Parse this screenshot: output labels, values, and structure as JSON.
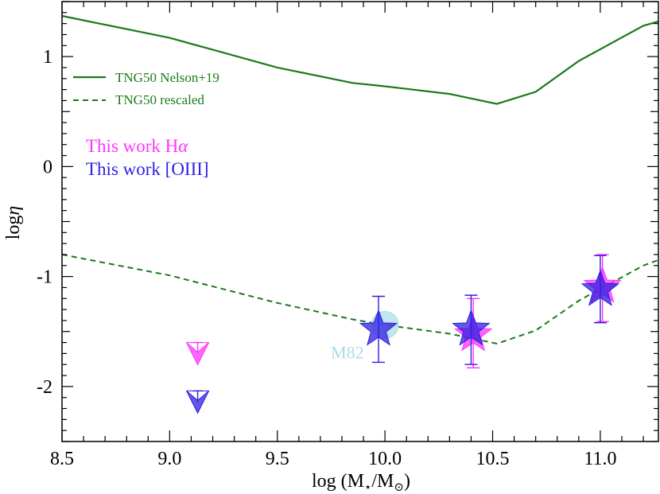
{
  "colors": {
    "nelson": "#1a7a1a",
    "rescaled": "#1a7a1a",
    "halpha": "#ff33ff",
    "oiii": "#2f1fe0",
    "m82": "#a8dcea"
  },
  "chart_data": {
    "type": "scatter",
    "title": "",
    "xlabel": "log (M★/M⊙)",
    "xlabel_parts": {
      "base": "log (M",
      "sub1": "⋆",
      "mid": "/M",
      "sub2": "⊙",
      "end": ")"
    },
    "ylabel": "logη",
    "ylabel_parts": {
      "base": "log",
      "italic": "η"
    },
    "xlim": [
      8.5,
      11.27
    ],
    "ylim": [
      -2.5,
      1.5
    ],
    "xticks": [
      8.5,
      9.0,
      9.5,
      10.0,
      10.5,
      11.0
    ],
    "xtick_labels": [
      "8.5",
      "9.0",
      "9.5",
      "10.0",
      "10.5",
      "11.0"
    ],
    "yticks": [
      1,
      0,
      -1,
      -2
    ],
    "ytick_labels": [
      "1",
      "0",
      "-1",
      "-2"
    ],
    "legend_position": "top-left",
    "series": [
      {
        "name": "TNG50 Nelson+19",
        "style": "solid",
        "x": [
          8.5,
          9.0,
          9.5,
          9.85,
          10.0,
          10.3,
          10.52,
          10.7,
          10.9,
          11.2,
          11.27
        ],
        "y": [
          1.37,
          1.17,
          0.9,
          0.76,
          0.73,
          0.66,
          0.57,
          0.68,
          0.96,
          1.28,
          1.32
        ]
      },
      {
        "name": "TNG50 rescaled",
        "style": "dashed",
        "x": [
          8.5,
          9.0,
          9.5,
          9.85,
          10.0,
          10.3,
          10.52,
          10.7,
          10.9,
          11.2,
          11.27
        ],
        "y": [
          -0.8,
          -0.99,
          -1.24,
          -1.39,
          -1.44,
          -1.52,
          -1.61,
          -1.49,
          -1.22,
          -0.9,
          -0.85
        ]
      }
    ],
    "points": {
      "halpha": {
        "label_base": "This work H",
        "label_greek": "α",
        "stars": [
          {
            "x": 10.41,
            "y": -1.53,
            "yerr_low": 0.3,
            "yerr_high": 0.33
          },
          {
            "x": 11.01,
            "y": -1.09,
            "yerr_low": 0.32,
            "yerr_high": 0.29
          }
        ],
        "upper_limits": [
          {
            "x": 9.13,
            "y": -1.6
          }
        ]
      },
      "oiii": {
        "label": "This work [OIII]",
        "stars": [
          {
            "x": 9.97,
            "y": -1.48,
            "yerr_low": 0.3,
            "yerr_high": 0.3
          },
          {
            "x": 10.4,
            "y": -1.48,
            "yerr_low": 0.32,
            "yerr_high": 0.31
          },
          {
            "x": 11.0,
            "y": -1.12,
            "yerr_low": 0.3,
            "yerr_high": 0.31
          }
        ],
        "upper_limits": [
          {
            "x": 9.13,
            "y": -2.04
          }
        ]
      },
      "m82": {
        "label": "M82",
        "x": 10.0,
        "y": -1.44
      }
    }
  }
}
